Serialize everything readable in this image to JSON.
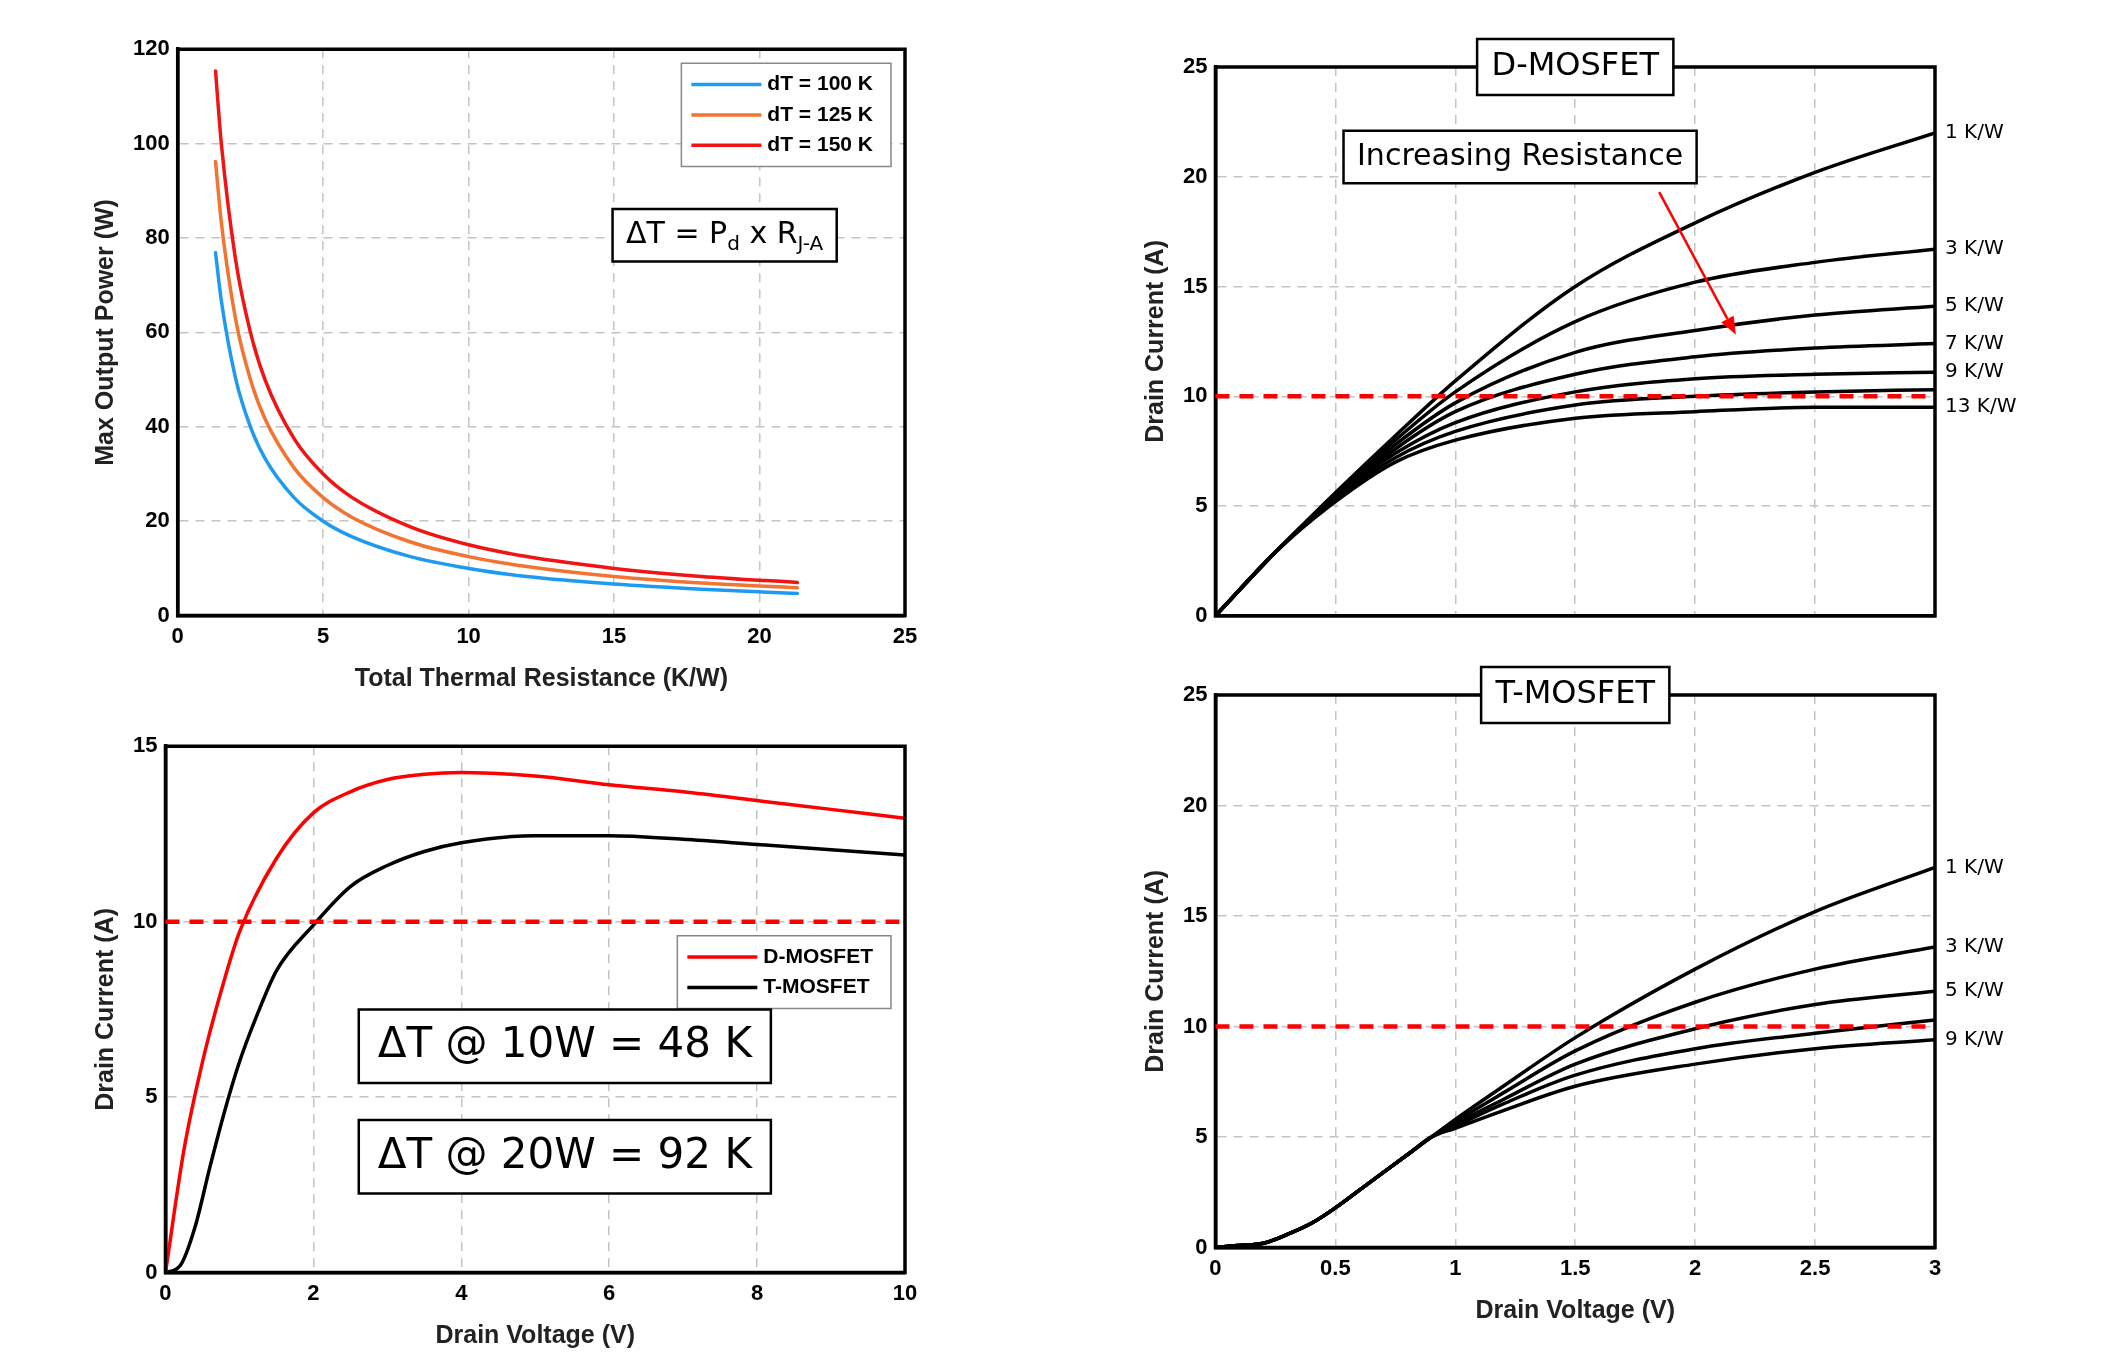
{
  "chart_data": [
    {
      "type": "line",
      "xlabel": "Total Thermal Resistance (K/W)",
      "ylabel": "Max Output Power (W)",
      "xlim": [
        0,
        25
      ],
      "xticks": [
        0,
        5,
        10,
        15,
        20,
        25
      ],
      "ylim": [
        0,
        120
      ],
      "yticks": [
        0,
        20,
        40,
        60,
        80,
        100,
        120
      ],
      "grid": true,
      "legend": "top right",
      "marker": "none",
      "line_style": "solid",
      "annotations": [
        "ΔT = P$_{d}$ x R$_{J-A}$"
      ],
      "x": [
        1.3,
        1.5,
        2,
        2.5,
        3,
        4,
        5,
        6,
        8,
        10,
        12,
        15,
        18,
        21.3
      ],
      "series": [
        {
          "name": "dT = 100 K",
          "color": "#1e9bf0",
          "values": [
            76.9,
            66.7,
            50,
            40,
            33.3,
            25,
            20,
            16.7,
            12.5,
            10,
            8.3,
            6.7,
            5.6,
            4.7
          ]
        },
        {
          "name": "dT = 125 K",
          "color": "#f37332",
          "values": [
            96.2,
            83.3,
            62.5,
            50,
            41.7,
            31.3,
            25,
            20.8,
            15.6,
            12.5,
            10.4,
            8.3,
            6.9,
            5.9
          ]
        },
        {
          "name": "dT = 150 K",
          "color": "#f01414",
          "values": [
            115.4,
            100,
            75,
            60,
            50,
            37.5,
            30,
            25,
            18.8,
            15,
            12.5,
            10,
            8.3,
            7
          ]
        }
      ]
    },
    {
      "type": "line",
      "xlabel": "Drain Voltage (V)",
      "ylabel": "Drain Current (A)",
      "xlim": [
        0,
        10
      ],
      "xticks": [
        0,
        2,
        4,
        6,
        8,
        10
      ],
      "ylim": [
        0,
        15
      ],
      "yticks": [
        0,
        5,
        10,
        15
      ],
      "grid": true,
      "legend": "right",
      "marker": "none",
      "line_style": "solid",
      "annotations": [
        "ΔT @ 10W = 48 K",
        "ΔT @ 20W = 92 K"
      ],
      "ref_lines": [
        {
          "axis": "y",
          "value": 10,
          "color": "#ff0000",
          "line_style": "dashed"
        }
      ],
      "series": [
        {
          "name": "D-MOSFET",
          "color": "#ff0000",
          "x": [
            0,
            0.25,
            0.5,
            0.75,
            1,
            1.5,
            2,
            2.5,
            3,
            3.5,
            4,
            5,
            6,
            7,
            8,
            9,
            10
          ],
          "values": [
            0,
            3.5,
            6,
            8,
            9.7,
            11.8,
            13.1,
            13.7,
            14.05,
            14.2,
            14.25,
            14.15,
            13.9,
            13.7,
            13.45,
            13.2,
            12.95
          ]
        },
        {
          "name": "T-MOSFET",
          "color": "#000000",
          "x": [
            0,
            0.2,
            0.4,
            0.6,
            0.8,
            1,
            1.25,
            1.5,
            2,
            2.5,
            3,
            3.5,
            4,
            5,
            6,
            7,
            8,
            9,
            10
          ],
          "values": [
            0,
            0.2,
            1.3,
            3,
            4.6,
            6,
            7.4,
            8.6,
            9.9,
            11,
            11.6,
            12,
            12.25,
            12.45,
            12.45,
            12.35,
            12.2,
            12.05,
            11.9
          ]
        }
      ]
    },
    {
      "type": "line",
      "title": "D-MOSFET",
      "ylabel": "Drain Current (A)",
      "xlim": [
        0,
        3
      ],
      "xticks": [
        0,
        0.5,
        1,
        1.5,
        2,
        2.5,
        3
      ],
      "ylim": [
        0,
        25
      ],
      "yticks": [
        0,
        5,
        10,
        15,
        20,
        25
      ],
      "tick_labels": "y",
      "grid": true,
      "marker": "none",
      "line_style": "solid",
      "annotations": [
        "Increasing Resistance"
      ],
      "ref_lines": [
        {
          "axis": "y",
          "value": 10,
          "color": "#ff0000",
          "line_style": "dashed"
        }
      ],
      "x": [
        0,
        0.25,
        0.5,
        0.75,
        1,
        1.5,
        2,
        2.5,
        3
      ],
      "series": [
        {
          "name": "1 K/W",
          "color": "#000000",
          "values": [
            0,
            2.9,
            5.6,
            8.2,
            10.7,
            15,
            17.9,
            20.2,
            22
          ]
        },
        {
          "name": "3 K/W",
          "color": "#000000",
          "values": [
            0,
            2.9,
            5.5,
            8,
            10.2,
            13.4,
            15.2,
            16.1,
            16.7
          ]
        },
        {
          "name": "5 K/W",
          "color": "#000000",
          "values": [
            0,
            2.9,
            5.5,
            7.8,
            9.7,
            12,
            13,
            13.7,
            14.1
          ]
        },
        {
          "name": "7 K/W",
          "color": "#000000",
          "values": [
            0,
            2.9,
            5.4,
            7.6,
            9.3,
            11,
            11.8,
            12.2,
            12.4
          ]
        },
        {
          "name": "9 K/W",
          "color": "#000000",
          "values": [
            0,
            2.9,
            5.4,
            7.4,
            8.8,
            10.2,
            10.8,
            11,
            11.1
          ]
        },
        {
          "color": "#000000",
          "values": [
            0,
            2.9,
            5.3,
            7.2,
            8.4,
            9.6,
            10,
            10.2,
            10.3
          ]
        },
        {
          "name": "13 K/W",
          "color": "#000000",
          "values": [
            0,
            2.9,
            5.2,
            7,
            8,
            9,
            9.3,
            9.5,
            9.5
          ]
        }
      ]
    },
    {
      "type": "line",
      "title": "T-MOSFET",
      "xlabel": "Drain Voltage (V)",
      "ylabel": "Drain Current (A)",
      "xlim": [
        0,
        3
      ],
      "xticks": [
        0,
        0.5,
        1,
        1.5,
        2,
        2.5,
        3
      ],
      "ylim": [
        0,
        25
      ],
      "yticks": [
        0,
        5,
        10,
        15,
        20,
        25
      ],
      "grid": true,
      "marker": "none",
      "line_style": "solid",
      "ref_lines": [
        {
          "axis": "y",
          "value": 10,
          "color": "#ff0000",
          "line_style": "dashed"
        }
      ],
      "x": [
        0,
        0.1,
        0.2,
        0.3,
        0.4,
        0.5,
        0.6,
        0.7,
        0.8,
        0.9,
        1,
        1.2,
        1.5,
        2,
        2.5,
        3
      ],
      "series": [
        {
          "name": "1 K/W",
          "color": "#000000",
          "values": [
            0,
            0.1,
            0.2,
            0.6,
            1.1,
            1.8,
            2.6,
            3.4,
            4.2,
            5,
            5.8,
            7.3,
            9.5,
            12.6,
            15.2,
            17.2
          ]
        },
        {
          "name": "3 K/W",
          "color": "#000000",
          "values": [
            0,
            0.1,
            0.2,
            0.6,
            1.1,
            1.8,
            2.6,
            3.4,
            4.2,
            5,
            5.7,
            7,
            8.9,
            11.1,
            12.6,
            13.6
          ]
        },
        {
          "name": "5 K/W",
          "color": "#000000",
          "values": [
            0,
            0.1,
            0.2,
            0.6,
            1.1,
            1.8,
            2.6,
            3.4,
            4.2,
            5,
            5.6,
            6.7,
            8.3,
            9.9,
            11,
            11.6
          ]
        },
        {
          "color": "#000000",
          "values": [
            0,
            0.1,
            0.2,
            0.6,
            1.1,
            1.8,
            2.6,
            3.4,
            4.2,
            5,
            5.5,
            6.5,
            7.8,
            9,
            9.7,
            10.3
          ]
        },
        {
          "name": "9 K/W",
          "color": "#000000",
          "values": [
            0,
            0.1,
            0.2,
            0.6,
            1.1,
            1.8,
            2.6,
            3.4,
            4.2,
            5,
            5.4,
            6.2,
            7.3,
            8.3,
            9,
            9.4
          ]
        }
      ]
    }
  ]
}
